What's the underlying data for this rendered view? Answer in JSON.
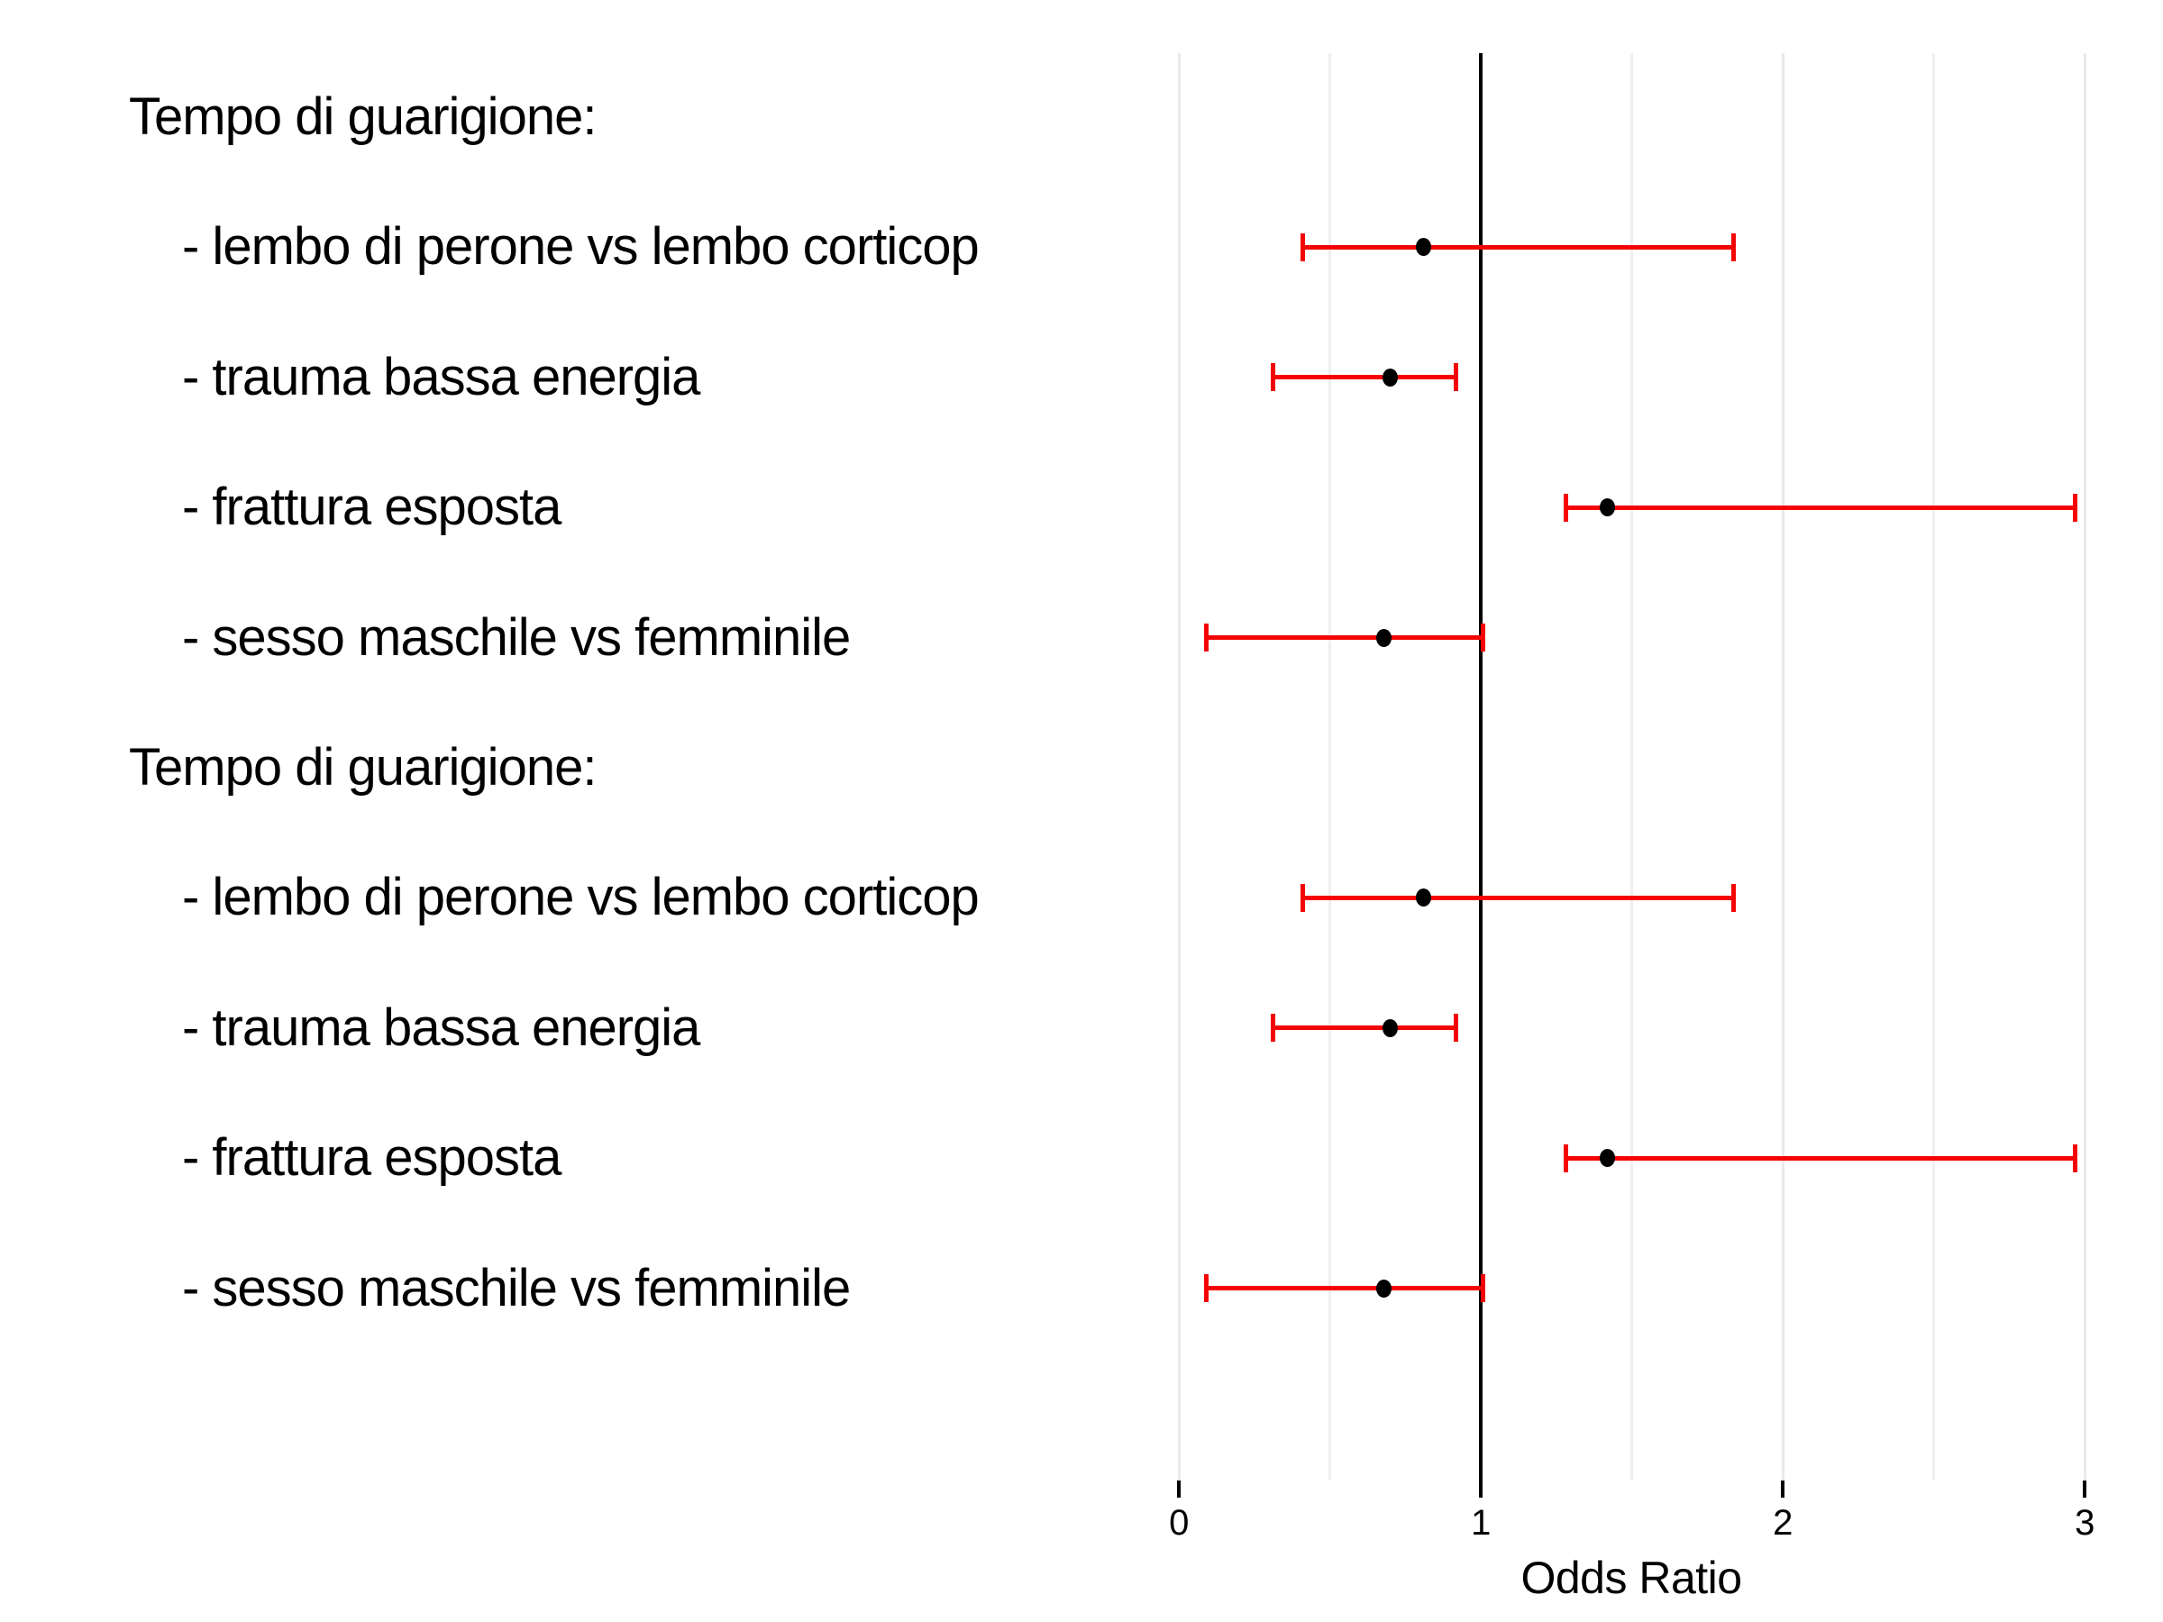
{
  "chart_data": {
    "type": "forest",
    "title": "",
    "xlabel": "Odds Ratio",
    "x_ticks": [
      0,
      1,
      2,
      3
    ],
    "x_tick_labels": [
      "0",
      "1",
      "2",
      "3"
    ],
    "x_minor_gridlines": [
      0.5,
      1.5,
      2.5
    ],
    "xlim": [
      0,
      3.05
    ],
    "reference_line_x": 1,
    "grid": "on",
    "legend_position": "none",
    "bar_color": "#f40404",
    "point_color": "#000000",
    "refline_color": "#000000",
    "gridline_color": "#e9e9e9",
    "groups": [
      {
        "header": "Tempo di guarigione:",
        "items": [
          {
            "label": "- lembo di perone vs lembo corticop",
            "or": 0.81,
            "ci_low": 0.41,
            "ci_high": 1.84
          },
          {
            "label": "- trauma bassa energia",
            "or": 0.7,
            "ci_low": 0.31,
            "ci_high": 0.92
          },
          {
            "label": "- frattura esposta",
            "or": 1.42,
            "ci_low": 1.28,
            "ci_high": 2.97
          },
          {
            "label": "- sesso maschile vs femminile",
            "or": 0.68,
            "ci_low": 0.09,
            "ci_high": 1.01
          }
        ]
      },
      {
        "header": "Tempo di guarigione:",
        "items": [
          {
            "label": "- lembo di perone vs lembo corticop",
            "or": 0.81,
            "ci_low": 0.41,
            "ci_high": 1.84
          },
          {
            "label": "- trauma bassa energia",
            "or": 0.7,
            "ci_low": 0.31,
            "ci_high": 0.92
          },
          {
            "label": "- frattura esposta",
            "or": 1.42,
            "ci_low": 1.28,
            "ci_high": 2.97
          },
          {
            "label": "- sesso maschile vs femminile",
            "or": 0.68,
            "ci_low": 0.09,
            "ci_high": 1.01
          }
        ]
      }
    ]
  }
}
